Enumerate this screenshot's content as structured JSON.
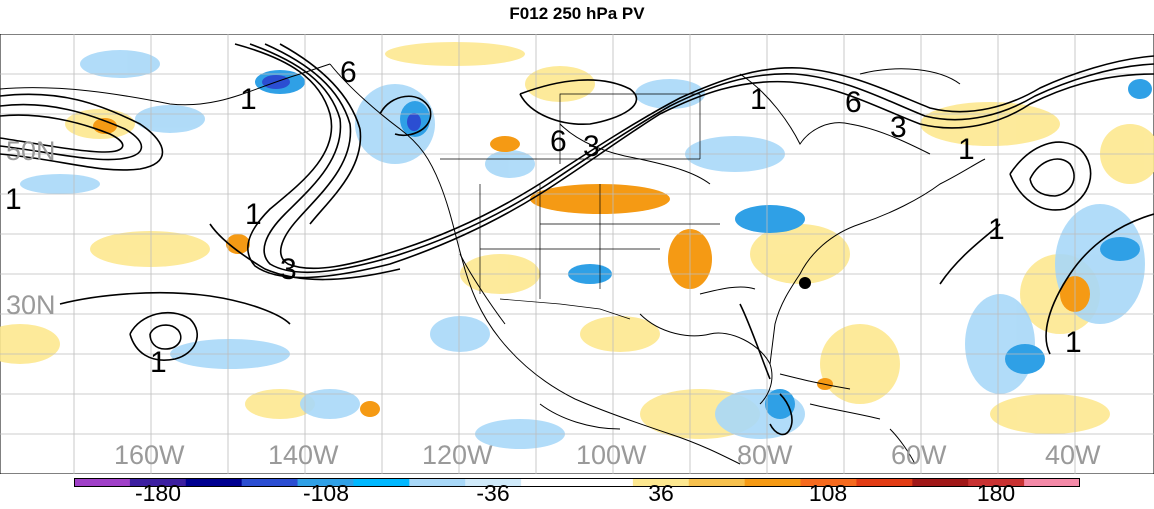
{
  "title": "F012 250 hPa PV",
  "lat_labels": [
    "50N",
    "30N"
  ],
  "lon_labels": [
    "160W",
    "140W",
    "120W",
    "100W",
    "80W",
    "60W",
    "40W"
  ],
  "contour_labels": [
    "6",
    "1",
    "1",
    "3",
    "1",
    "6",
    "3",
    "1",
    "6",
    "3",
    "1",
    "1",
    "1",
    "1"
  ],
  "colorbar": {
    "tick_labels": [
      "-180",
      "-108",
      "-36",
      "36",
      "108",
      "180"
    ],
    "colors": [
      "#a040c8",
      "#3c1ea0",
      "#000090",
      "#2b4ed2",
      "#2fa0e6",
      "#00b8ff",
      "#a8d8f8",
      "#d0eafa",
      "#ffffff",
      "#ffffff",
      "#fde890",
      "#f7c14e",
      "#f59a14",
      "#f56a1e",
      "#e23c14",
      "#a01818",
      "#c83232",
      "#f48aa8"
    ]
  },
  "colors": {
    "contour": "#000000",
    "coastline": "#000000",
    "grid": "#bdbdbd",
    "label_gray": "#9a9a9a"
  }
}
